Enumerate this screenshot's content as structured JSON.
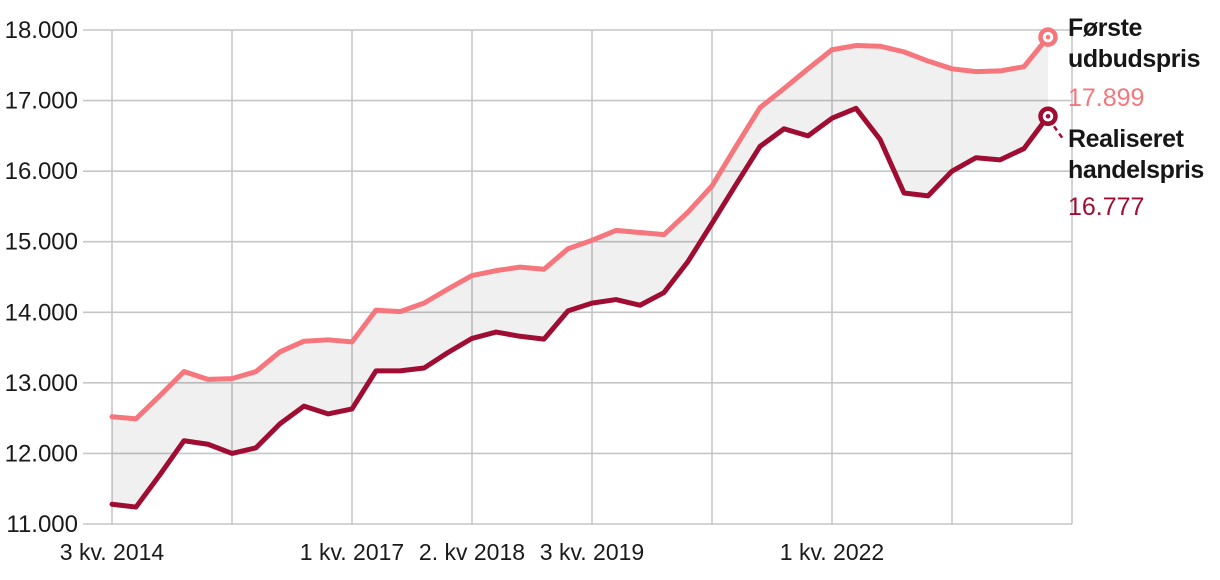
{
  "chart_data": {
    "type": "line",
    "unit_note": "",
    "grid": true,
    "legend_position": "right",
    "ylim": [
      11000,
      18000
    ],
    "background_color": "#ffffff",
    "grid_color": "#c6c6c6",
    "text_color": "#1a1a1a",
    "band_fill": "rgba(0,0,0,0.06)",
    "x": [
      "2014-Q3",
      "2014-Q4",
      "2015-Q1",
      "2015-Q2",
      "2015-Q3",
      "2015-Q4",
      "2016-Q1",
      "2016-Q2",
      "2016-Q3",
      "2016-Q4",
      "2017-Q1",
      "2017-Q2",
      "2017-Q3",
      "2017-Q4",
      "2018-Q1",
      "2018-Q2",
      "2018-Q3",
      "2018-Q4",
      "2019-Q1",
      "2019-Q2",
      "2019-Q3",
      "2019-Q4",
      "2020-Q1",
      "2020-Q2",
      "2020-Q3",
      "2020-Q4",
      "2021-Q1",
      "2021-Q2",
      "2021-Q3",
      "2021-Q4",
      "2022-Q1",
      "2022-Q2",
      "2022-Q3",
      "2022-Q4",
      "2023-Q1",
      "2023-Q2",
      "2023-Q3",
      "2023-Q4",
      "2024-Q1",
      "2024-Q2"
    ],
    "x_tick_labels": [
      {
        "index": 0,
        "label": "3 kv. 2014"
      },
      {
        "index": 10,
        "label": "1 kv. 2017"
      },
      {
        "index": 15,
        "label": "2. kv 2018"
      },
      {
        "index": 20,
        "label": "3 kv. 2019"
      },
      {
        "index": 30,
        "label": "1 kv. 2022"
      }
    ],
    "y_ticks": [
      {
        "value": 18000,
        "label": "18.000"
      },
      {
        "value": 17000,
        "label": "17.000"
      },
      {
        "value": 16000,
        "label": "16.000"
      },
      {
        "value": 15000,
        "label": "15.000"
      },
      {
        "value": 14000,
        "label": "14.000"
      },
      {
        "value": 13000,
        "label": "13.000"
      },
      {
        "value": 12000,
        "label": "12.000"
      },
      {
        "value": 11000,
        "label": "11.000"
      }
    ],
    "series": [
      {
        "name": "Første udbudspris",
        "name_lines": [
          "Første",
          "udbudspris"
        ],
        "value_label": "17.899",
        "final_value": 17899,
        "color": "#f5767c",
        "values": [
          12520,
          12490,
          12820,
          13160,
          13050,
          13060,
          13160,
          13440,
          13590,
          13610,
          13580,
          14030,
          14010,
          14130,
          14330,
          14520,
          14590,
          14640,
          14610,
          14900,
          15020,
          15160,
          15130,
          15100,
          15420,
          15790,
          16350,
          16900,
          17170,
          17450,
          17720,
          17780,
          17770,
          17690,
          17560,
          17450,
          17410,
          17420,
          17480,
          17899
        ]
      },
      {
        "name": "Realiseret handelspris",
        "name_lines": [
          "Realiseret",
          "handelspris"
        ],
        "value_label": "16.777",
        "final_value": 16777,
        "color": "#a00d32",
        "values": [
          11280,
          11240,
          11700,
          12180,
          12130,
          12000,
          12080,
          12420,
          12670,
          12560,
          12630,
          13170,
          13170,
          13210,
          13430,
          13630,
          13720,
          13660,
          13620,
          14020,
          14130,
          14180,
          14100,
          14280,
          14720,
          15260,
          15810,
          16350,
          16600,
          16500,
          16750,
          16890,
          16450,
          15690,
          15650,
          16000,
          16190,
          16160,
          16320,
          16777
        ]
      }
    ]
  }
}
